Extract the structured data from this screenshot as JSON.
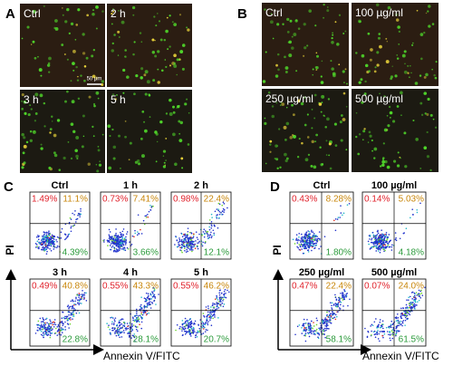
{
  "panels": [
    {
      "label": "A",
      "images": [
        {
          "label": "Ctrl"
        },
        {
          "label": "2 h"
        },
        {
          "label": "3 h"
        },
        {
          "label": "5 h"
        }
      ],
      "scale_bar": "50 µm"
    },
    {
      "label": "B",
      "images": [
        {
          "label": "Ctrl"
        },
        {
          "label": "100 µg/ml"
        },
        {
          "label": "250 µg/ml"
        },
        {
          "label": "500 µg/ml"
        }
      ]
    },
    {
      "label": "C",
      "y_axis": "PI",
      "x_axis": "Annexin V/FITC",
      "plots": [
        {
          "title": "Ctrl",
          "upper_left": "1.49%",
          "upper_right": "11.1%",
          "lower_right": "4.39%"
        },
        {
          "title": "1 h",
          "upper_left": "0.73%",
          "upper_right": "7.41%",
          "lower_right": "3.66%"
        },
        {
          "title": "2 h",
          "upper_left": "0.98%",
          "upper_right": "22.4%",
          "lower_right": "12.1%"
        },
        {
          "title": "3 h",
          "upper_left": "0.49%",
          "upper_right": "40.8%",
          "lower_right": "22.8%"
        },
        {
          "title": "4 h",
          "upper_left": "0.55%",
          "upper_right": "43.3%",
          "lower_right": "28.1%"
        },
        {
          "title": "5 h",
          "upper_left": "0.55%",
          "upper_right": "46.2%",
          "lower_right": "20.7%"
        }
      ]
    },
    {
      "label": "D",
      "y_axis": "PI",
      "x_axis": "Annexin V/FITC",
      "plots": [
        {
          "title": "Ctrl",
          "upper_left": "0.43%",
          "upper_right": "8.28%",
          "lower_right": "1.80%"
        },
        {
          "title": "100 µg/ml",
          "upper_left": "0.14%",
          "upper_right": "5.03%",
          "lower_right": "4.18%"
        },
        {
          "title": "250 µg/ml",
          "upper_left": "0.47%",
          "upper_right": "22.4%",
          "lower_right": "58.1%"
        },
        {
          "title": "500 µg/ml",
          "upper_left": "0.07%",
          "upper_right": "24.0%",
          "lower_right": "61.5%"
        }
      ]
    }
  ]
}
